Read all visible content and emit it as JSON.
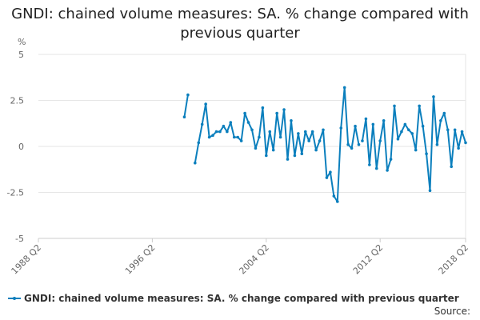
{
  "chart_data": {
    "type": "line",
    "title": "GNDI: chained volume measures: SA. % change compared with previous quarter",
    "ylabel": "%",
    "xlabel": "",
    "ylim": [
      -5,
      5
    ],
    "yticks": [
      5,
      2.5,
      0,
      -2.5,
      -5
    ],
    "ytick_labels": [
      "5",
      "2.5",
      "0",
      "-2.5",
      "-5"
    ],
    "xticks": [
      "1988 Q2",
      "1996 Q2",
      "2004 Q2",
      "2012 Q2",
      "2018 Q2"
    ],
    "grid": true,
    "legend_position": "bottom-left",
    "color": "#0b7fbd",
    "series": [
      {
        "name": "GNDI: chained volume measures: SA. % change compared with previous quarter",
        "segments": [
          {
            "start": "1998 Q3",
            "values": [
              1.6,
              2.8
            ]
          },
          {
            "start": "1999 Q2",
            "values": [
              -0.9,
              0.2,
              1.2,
              2.3,
              0.5,
              0.6,
              0.8,
              0.8,
              1.1,
              0.8,
              1.3,
              0.5,
              0.5,
              0.3,
              1.8,
              1.3,
              0.9,
              -0.1,
              0.5,
              2.1,
              -0.5,
              0.8,
              -0.2,
              1.8,
              0.5,
              2.0,
              -0.7,
              1.4,
              -0.5,
              0.7,
              -0.4,
              0.8,
              0.3,
              0.8,
              -0.2,
              0.3,
              0.9,
              -1.7,
              -1.4,
              -2.7,
              -3.0,
              1.0,
              3.2,
              0.1,
              -0.1,
              1.1,
              0.1
            ]
          },
          {
            "start": "2011 Q1",
            "values": [
              0.3,
              1.5,
              -1.0,
              1.2,
              -1.2,
              0.3,
              1.4,
              -1.3,
              -0.7,
              2.2,
              0.4,
              0.8,
              1.2,
              0.9,
              0.7,
              -0.2,
              2.2,
              1.1,
              -0.4,
              -2.4,
              2.7,
              0.1,
              1.4,
              1.8,
              0.9,
              -1.1,
              0.9,
              -0.1,
              0.8,
              0.2
            ]
          }
        ]
      }
    ]
  },
  "legend": {
    "label": "GNDI: chained volume measures: SA. % change compared with previous quarter"
  },
  "footer": {
    "source_label": "Source:"
  }
}
